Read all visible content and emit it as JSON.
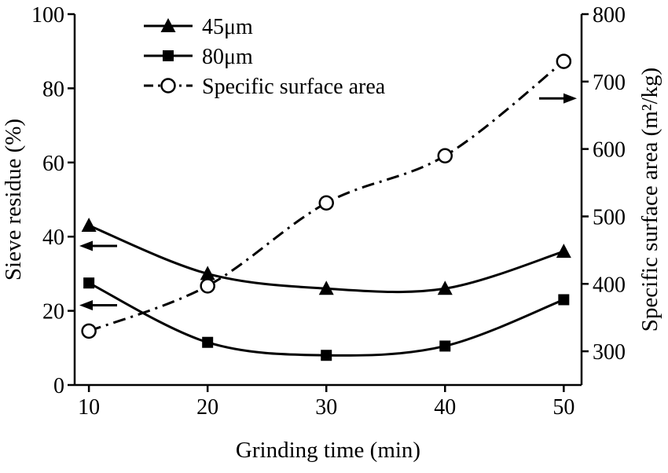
{
  "chart_data": {
    "type": "line",
    "title": "",
    "xlabel": "Grinding time (min)",
    "ylabel_left": "Sieve residue (%)",
    "ylabel_right": "Specific surface area (m²/kg)",
    "x": [
      10,
      20,
      30,
      40,
      50
    ],
    "series": [
      {
        "name": "45μm",
        "axis": "left",
        "marker": "triangle-filled",
        "line_style": "solid",
        "values": [
          43,
          30,
          26,
          26,
          36
        ]
      },
      {
        "name": "80μm",
        "axis": "left",
        "marker": "square-filled",
        "line_style": "solid",
        "values": [
          27.5,
          11.5,
          8,
          10.5,
          23
        ]
      },
      {
        "name": "Specific surface area",
        "axis": "right",
        "marker": "circle-open",
        "line_style": "dashdot",
        "values": [
          330,
          397,
          520,
          590,
          730
        ]
      }
    ],
    "x_axis": {
      "min": 8.8,
      "max": 51.5,
      "ticks": [
        10,
        20,
        30,
        40,
        50
      ]
    },
    "left_axis": {
      "min": 0,
      "max": 100,
      "ticks": [
        0,
        20,
        40,
        60,
        80,
        100
      ]
    },
    "right_axis": {
      "min": 250,
      "max": 800,
      "ticks": [
        300,
        400,
        500,
        600,
        700,
        800
      ]
    },
    "legend": {
      "position": "top-left-inside",
      "entries": [
        "45μm",
        "80μm",
        "Specific surface area"
      ]
    },
    "annotations": [
      {
        "type": "arrow",
        "direction": "left",
        "axis": "left",
        "value": 37.5
      },
      {
        "type": "arrow",
        "direction": "left",
        "axis": "left",
        "value": 21.5
      },
      {
        "type": "arrow",
        "direction": "right",
        "axis": "right",
        "value": 675
      }
    ],
    "grid": false,
    "colors": {
      "foreground": "#000000",
      "background": "#ffffff"
    }
  }
}
